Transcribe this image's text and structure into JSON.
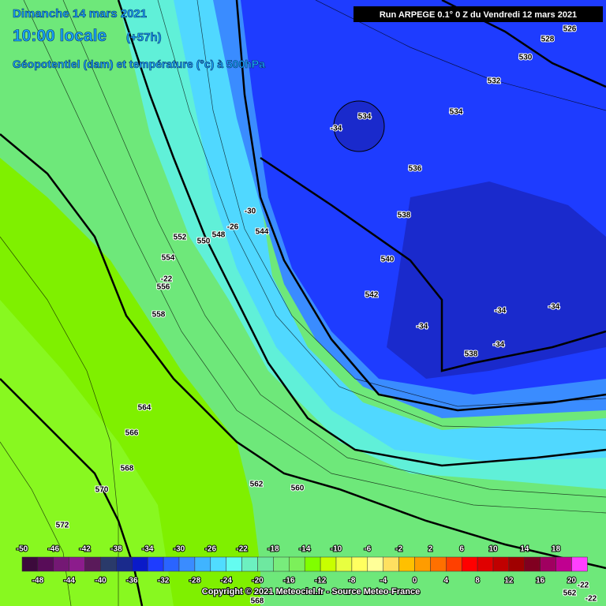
{
  "header": {
    "date": "Dimanche 14 mars 2021",
    "time": "10:00 locale",
    "offset": "(+57h)",
    "subtitle": "Géopotentiel (dam) et température (°c) à 500hPa",
    "run": "Run ARPEGE 0.1° 0 Z du Vendredi 12 mars 2021"
  },
  "contour_labels": [
    "526",
    "528",
    "530",
    "532",
    "534",
    "-34",
    "534",
    "536",
    "538",
    "-30",
    "-26",
    "548",
    "544",
    "552",
    "550",
    "540",
    "554",
    "-22",
    "556",
    "542",
    "558",
    "-34",
    "-34",
    "-34",
    "-34",
    "538",
    "564",
    "566",
    "568",
    "570",
    "562",
    "560",
    "572",
    "568",
    "562",
    "-22",
    "-22"
  ],
  "legend": {
    "colors": [
      "#3c0a3c",
      "#580c58",
      "#741874",
      "#8c1c8c",
      "#5a1a5a",
      "#2a3a6a",
      "#1a2a8c",
      "#0a1ac8",
      "#1e3cff",
      "#2a64ff",
      "#3a8cff",
      "#40b4ff",
      "#50dcff",
      "#64fcf0",
      "#6cf0c0",
      "#6ee8a0",
      "#78ec7c",
      "#7cf05a",
      "#80ff00",
      "#c8ff00",
      "#e8ff40",
      "#ffff60",
      "#ffff98",
      "#ffe060",
      "#ffc000",
      "#ff9c00",
      "#ff7000",
      "#ff4000",
      "#ff0000",
      "#e00000",
      "#c00000",
      "#a00000",
      "#800020",
      "#a00060",
      "#c00090",
      "#ff40ff"
    ],
    "top_labels": [
      "-50",
      "-46",
      "-42",
      "-38",
      "-34",
      "-30",
      "-26",
      "-22",
      "-18",
      "-14",
      "-10",
      "-6",
      "-2",
      "2",
      "6",
      "10",
      "14",
      "18"
    ],
    "bottom_labels": [
      "-48",
      "-44",
      "-40",
      "-36",
      "-32",
      "-28",
      "-24",
      "-20",
      "-16",
      "-12",
      "-8",
      "-4",
      "0",
      "4",
      "8",
      "12",
      "16",
      "20"
    ]
  },
  "footer": {
    "copyright": "Copyright © 2021 Meteociel.fr - Source Meteo-France"
  }
}
